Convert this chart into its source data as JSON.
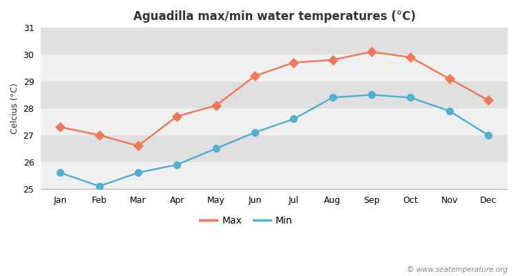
{
  "title": "Aguadilla max/min water temperatures (°C)",
  "ylabel": "Celcius (°C)",
  "months": [
    "Jan",
    "Feb",
    "Mar",
    "Apr",
    "May",
    "Jun",
    "Jul",
    "Aug",
    "Sep",
    "Oct",
    "Nov",
    "Dec"
  ],
  "max_temps": [
    27.3,
    27.0,
    26.6,
    27.7,
    28.1,
    29.2,
    29.7,
    29.8,
    30.1,
    29.9,
    29.1,
    28.3
  ],
  "min_temps": [
    25.6,
    25.1,
    25.6,
    25.9,
    26.5,
    27.1,
    27.6,
    28.4,
    28.5,
    28.4,
    27.9,
    27.0
  ],
  "max_color": "#f07858",
  "min_color": "#50b0d0",
  "ylim": [
    25.0,
    31.0
  ],
  "yticks": [
    25,
    26,
    27,
    28,
    29,
    30,
    31
  ],
  "band_colors": [
    "#f0f0f0",
    "#e0e0e0"
  ],
  "fig_bg_color": "#ffffff",
  "title_fontsize": 12,
  "axis_label_fontsize": 9,
  "tick_fontsize": 9,
  "legend_fontsize": 10,
  "watermark": "© www.seatemperature.org"
}
